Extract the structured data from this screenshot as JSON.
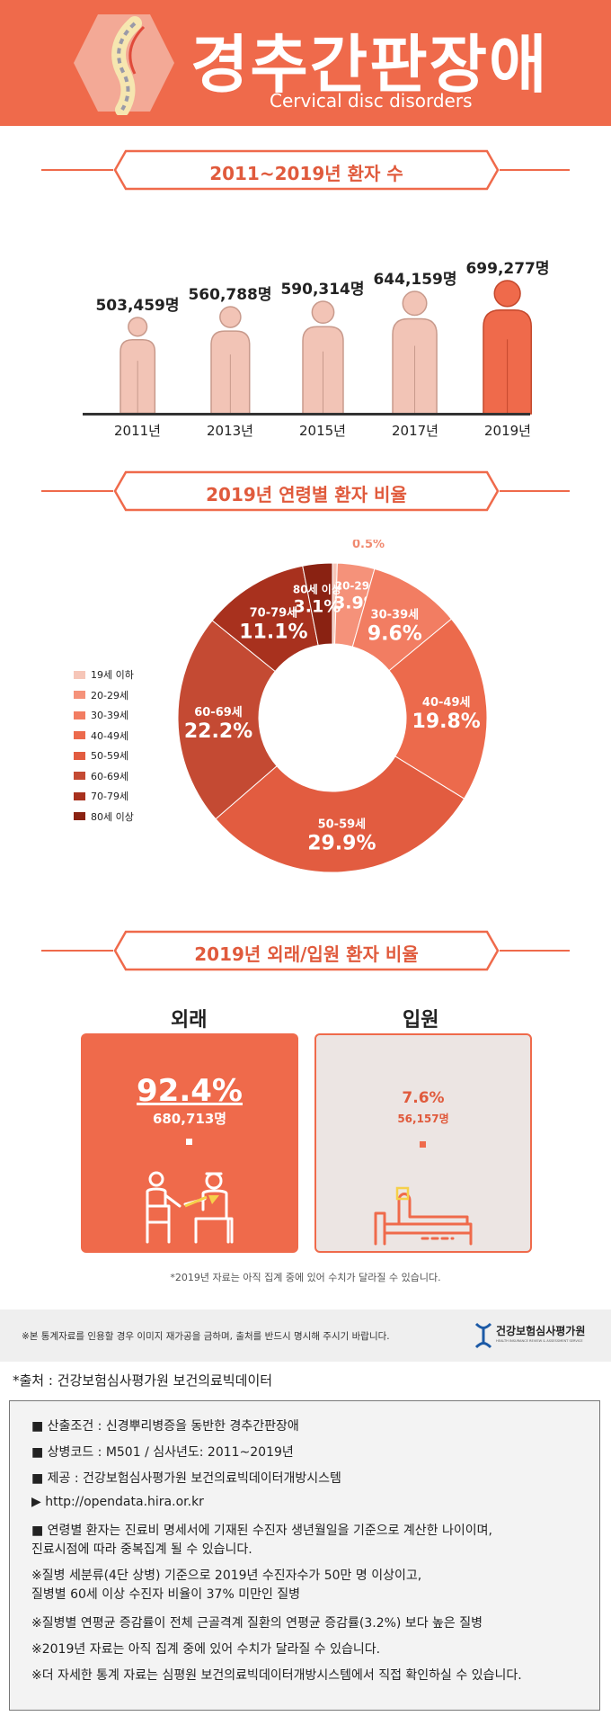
{
  "header": {
    "title": "경추간판장애",
    "subtitle": "Cervical disc disorders"
  },
  "sections": {
    "patients": "2011~2019년 환자 수",
    "age": "2019년 연령별 환자 비율",
    "outpatient_inpatient": "2019년 외래/입원 환자 비율"
  },
  "chart_data": [
    {
      "type": "bar",
      "title": "2011~2019년 환자 수",
      "categories": [
        "2011년",
        "2013년",
        "2015년",
        "2017년",
        "2019년"
      ],
      "values": [
        503459,
        560788,
        590314,
        644159,
        699277
      ],
      "value_labels": [
        "503,459명",
        "560,788명",
        "590,314명",
        "644,159명",
        "699,277명"
      ],
      "unit": "명"
    },
    {
      "type": "pie",
      "title": "2019년 연령별 환자 비율",
      "categories": [
        "19세 이하",
        "20-29세",
        "30-39세",
        "40-49세",
        "50-59세",
        "60-69세",
        "70-79세",
        "80세 이상"
      ],
      "values": [
        0.5,
        3.9,
        9.6,
        19.8,
        29.9,
        22.2,
        11.1,
        3.1
      ],
      "value_labels": [
        "0.5%",
        "3.9%",
        "9.6%",
        "19.8%",
        "29.9%",
        "22.2%",
        "11.1%",
        "3.1%"
      ],
      "colors": [
        "#f6c6b8",
        "#f5927a",
        "#f27d62",
        "#ec6a4c",
        "#e25c40",
        "#c44a33",
        "#a8311e",
        "#8a2212"
      ],
      "legend": "left"
    },
    {
      "type": "table",
      "title": "2019년 외래/입원 환자 비율",
      "categories": [
        "외래",
        "입원"
      ],
      "values": [
        92.4,
        7.6
      ],
      "value_labels": [
        "92.4%",
        "7.6%"
      ],
      "counts": [
        "680,713명",
        "56,157명"
      ]
    }
  ],
  "colors": {
    "accent": "#ef6a4b",
    "figure_light": "#f2c4b6",
    "figure_highlight": "#ef6a4b",
    "inpatient_bg": "#ece5e3"
  },
  "notes": {
    "provisional": "*2019년 자료는 아직 집계 중에 있어 수치가 달라질 수 있습니다.",
    "copyright": "※본 통계자료를 인용할 경우 이미지 재가공을 금하며, 출처를 반드시 명시해 주시기 바랍니다.",
    "org_name": "건강보험심사평가원",
    "org_sub": "HEALTH INSURANCE REVIEW & ASSESSMENT SERVICE",
    "source": "*출처 : 건강보험심사평가원 보건의료빅데이터"
  },
  "info": [
    "■  산출조건 : 신경뿌리병증을 동반한 경추간판장애",
    "■  상병코드 : M501 / 심사년도: 2011~2019년",
    "■  제공 : 건강보험심사평가원 보건의료빅데이터개방시스템",
    "▶  http://opendata.hira.or.kr",
    "■  연령별 환자는 진료비 명세서에 기재된 수진자 생년월일을 기준으로 계산한 나이이며,",
    "     진료시점에 따라 중복집계 될 수 있습니다.",
    "※질병 세분류(4단 상병) 기준으로 2019년 수진자수가 50만 명 이상이고,",
    "   질병별 60세 이상 수진자 비율이 37% 미만인 질병",
    "※질병별 연평균 증감률이 전체 근골격계 질환의 연평균 증감률(3.2%) 보다 높은 질병",
    "※2019년 자료는 아직 집계 중에 있어 수치가 달라질 수 있습니다.",
    "※더 자세한 통계 자료는 심평원 보건의료빅데이터개방시스템에서 직접 확인하실 수 있습니다."
  ]
}
